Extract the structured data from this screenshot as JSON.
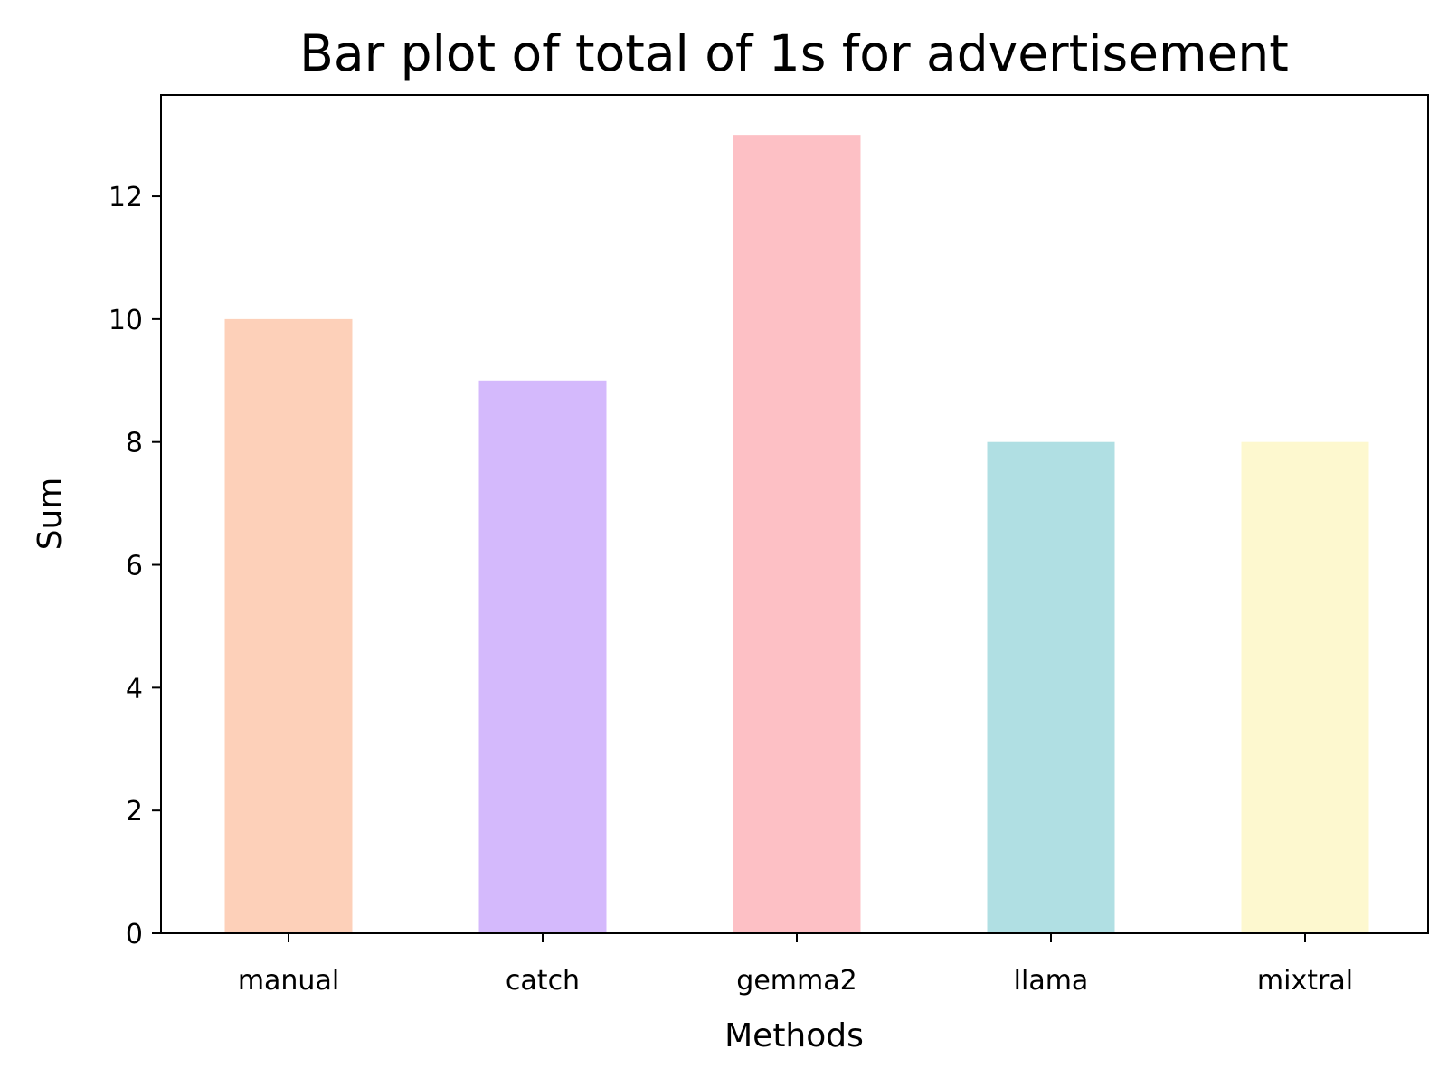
{
  "chart_data": {
    "type": "bar",
    "title": "Bar plot of total of 1s for advertisement",
    "xlabel": "Methods",
    "ylabel": "Sum",
    "categories": [
      "manual",
      "catch",
      "gemma2",
      "llama",
      "mixtral"
    ],
    "values": [
      10,
      9,
      13,
      8,
      8
    ],
    "colors": [
      "#fdd0b9",
      "#d4b9fc",
      "#fdc0c5",
      "#b0dfe3",
      "#fdf8cf"
    ],
    "ylim": [
      0,
      13.65
    ],
    "yticks": [
      0,
      2,
      4,
      6,
      8,
      10,
      12
    ],
    "grid": false,
    "legend": "none"
  }
}
